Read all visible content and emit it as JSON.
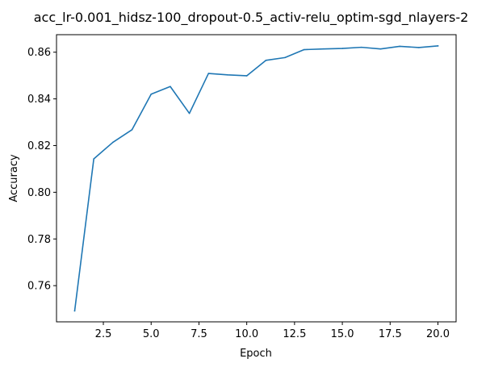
{
  "chart_data": {
    "type": "line",
    "title": "acc_lr-0.001_hidsz-100_dropout-0.5_activ-relu_optim-sgd_nlayers-2",
    "xlabel": "Epoch",
    "ylabel": "Accuracy",
    "xlim": [
      0.05,
      20.95
    ],
    "ylim": [
      0.7445,
      0.8675
    ],
    "xticks": [
      2.5,
      5.0,
      7.5,
      10.0,
      12.5,
      15.0,
      17.5,
      20.0
    ],
    "xtick_labels": [
      "2.5",
      "5.0",
      "7.5",
      "10.0",
      "12.5",
      "15.0",
      "17.5",
      "20.0"
    ],
    "yticks": [
      0.76,
      0.78,
      0.8,
      0.82,
      0.84,
      0.86
    ],
    "ytick_labels": [
      "0.76",
      "0.78",
      "0.80",
      "0.82",
      "0.84",
      "0.86"
    ],
    "grid": false,
    "series": [
      {
        "color": "#1f77b4",
        "x": [
          1,
          2,
          3,
          4,
          5,
          6,
          7,
          8,
          9,
          10,
          11,
          12,
          13,
          14,
          15,
          16,
          17,
          18,
          19,
          20
        ],
        "y": [
          0.7492,
          0.8143,
          0.8214,
          0.8268,
          0.842,
          0.8453,
          0.8338,
          0.8509,
          0.8503,
          0.8499,
          0.8565,
          0.8577,
          0.8611,
          0.8614,
          0.8616,
          0.8621,
          0.8614,
          0.8625,
          0.862,
          0.8627
        ]
      }
    ]
  }
}
